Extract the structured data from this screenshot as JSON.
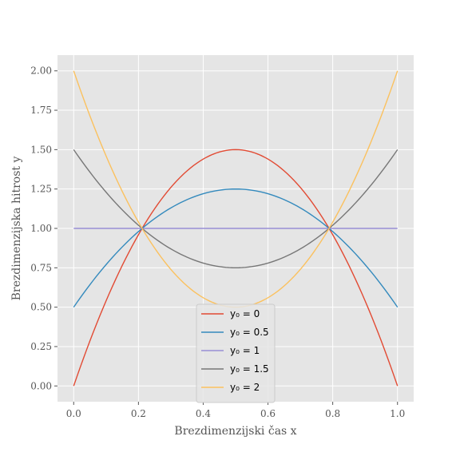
{
  "chart_data": {
    "type": "line",
    "xlabel": "Brezdimenzijski čas x",
    "ylabel": "Brezdimenzijska hitrost y",
    "xlim": [
      -0.05,
      1.05
    ],
    "ylim": [
      -0.1,
      2.1
    ],
    "x_ticks": [
      "0.0",
      "0.2",
      "0.4",
      "0.6",
      "0.8",
      "1.0"
    ],
    "y_ticks": [
      "0.00",
      "0.25",
      "0.50",
      "0.75",
      "1.00",
      "1.25",
      "1.50",
      "1.75",
      "2.00"
    ],
    "grid": true,
    "legend_position": "bottom-center",
    "x": [
      0.0,
      0.05,
      0.1,
      0.15,
      0.2,
      0.25,
      0.3,
      0.35,
      0.4,
      0.45,
      0.5,
      0.55,
      0.6,
      0.65,
      0.7,
      0.75,
      0.8,
      0.85,
      0.9,
      0.95,
      1.0
    ],
    "series": [
      {
        "name": "y₀ = 0",
        "color": "#e24a33",
        "values": [
          0.0,
          0.285,
          0.54,
          0.765,
          0.96,
          1.125,
          1.26,
          1.365,
          1.44,
          1.485,
          1.5,
          1.485,
          1.44,
          1.365,
          1.26,
          1.125,
          0.96,
          0.765,
          0.54,
          0.285,
          0.0
        ]
      },
      {
        "name": "y₀ = 0.5",
        "color": "#348abd",
        "values": [
          0.5,
          0.643,
          0.77,
          0.883,
          0.98,
          1.063,
          1.13,
          1.183,
          1.22,
          1.243,
          1.25,
          1.243,
          1.22,
          1.183,
          1.13,
          1.063,
          0.98,
          0.883,
          0.77,
          0.643,
          0.5
        ]
      },
      {
        "name": "y₀ = 1",
        "color": "#988ed5",
        "values": [
          1.0,
          1.0,
          1.0,
          1.0,
          1.0,
          1.0,
          1.0,
          1.0,
          1.0,
          1.0,
          1.0,
          1.0,
          1.0,
          1.0,
          1.0,
          1.0,
          1.0,
          1.0,
          1.0,
          1.0,
          1.0
        ]
      },
      {
        "name": "y₀ = 1.5",
        "color": "#777777",
        "values": [
          1.5,
          1.358,
          1.23,
          1.118,
          1.02,
          0.938,
          0.87,
          0.818,
          0.78,
          0.758,
          0.75,
          0.758,
          0.78,
          0.818,
          0.87,
          0.938,
          1.02,
          1.118,
          1.23,
          1.358,
          1.5
        ]
      },
      {
        "name": "y₀ = 2",
        "color": "#fbc15e",
        "values": [
          2.0,
          1.715,
          1.46,
          1.235,
          1.04,
          0.875,
          0.74,
          0.635,
          0.56,
          0.515,
          0.5,
          0.515,
          0.56,
          0.635,
          0.74,
          0.875,
          1.04,
          1.235,
          1.46,
          1.715,
          2.0
        ]
      }
    ]
  }
}
